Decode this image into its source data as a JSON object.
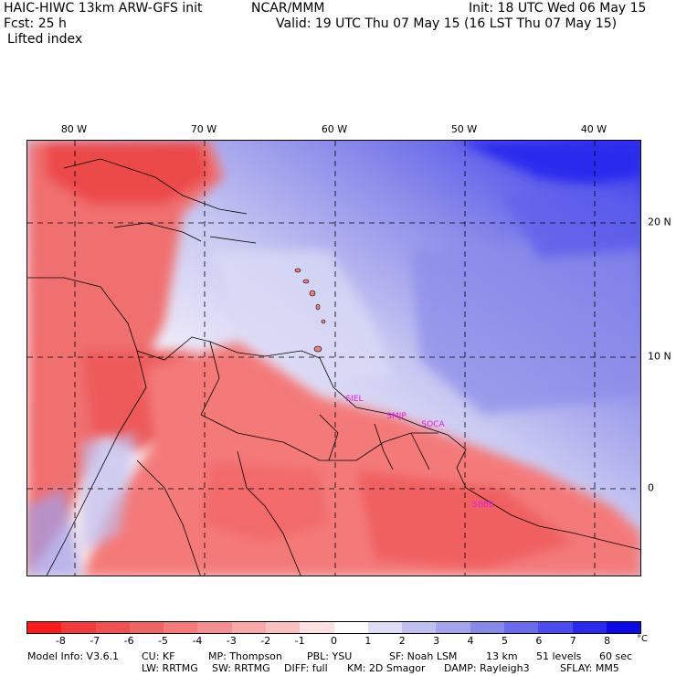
{
  "header": {
    "title": "HAIC-HIWC 13km ARW-GFS init",
    "org": "NCAR/MMM",
    "init": "Init: 18 UTC Wed 06 May 15",
    "fcst": "Fcst:   25 h",
    "valid": "Valid: 19 UTC Thu 07 May 15 (16 LST Thu 07 May 15)",
    "field": "Lifted index"
  },
  "map": {
    "lon_labels": [
      "80 W",
      "70 W",
      "60 W",
      "50 W",
      "40 W"
    ],
    "lat_labels": [
      "20 N",
      "10 N",
      "0"
    ],
    "stations": [
      "SIEL",
      "SMJP",
      "SOCA",
      "SBBE"
    ]
  },
  "legend": {
    "ticks": [
      "-8",
      "-7",
      "-6",
      "-5",
      "-4",
      "-3",
      "-2",
      "-1",
      "0",
      "1",
      "2",
      "3",
      "4",
      "5",
      "6",
      "7",
      "8"
    ],
    "unit": "°C",
    "colors": [
      "#ff1a1a",
      "#f23b3b",
      "#f05050",
      "#f06464",
      "#f47a7a",
      "#f69090",
      "#f8a8a8",
      "#fac0c0",
      "#fde0e0",
      "#ffffff",
      "#dcdcf6",
      "#c0c0f0",
      "#a4a4ec",
      "#8888e8",
      "#6a6aec",
      "#4c4cf0",
      "#2a2aee",
      "#0a0ae6"
    ]
  },
  "model_info": {
    "line1": [
      "Model Info: V3.6.1",
      "CU: KF",
      "MP: Thompson",
      "PBL: YSU",
      "SF: Noah LSM",
      "13 km",
      "51 levels",
      "60 sec"
    ],
    "line2": [
      "LW: RRTMG",
      "SW: RRTMG",
      "DIFF: full",
      "KM: 2D Smagor",
      "DAMP: Rayleigh3",
      "SFLAY: MM5"
    ]
  }
}
